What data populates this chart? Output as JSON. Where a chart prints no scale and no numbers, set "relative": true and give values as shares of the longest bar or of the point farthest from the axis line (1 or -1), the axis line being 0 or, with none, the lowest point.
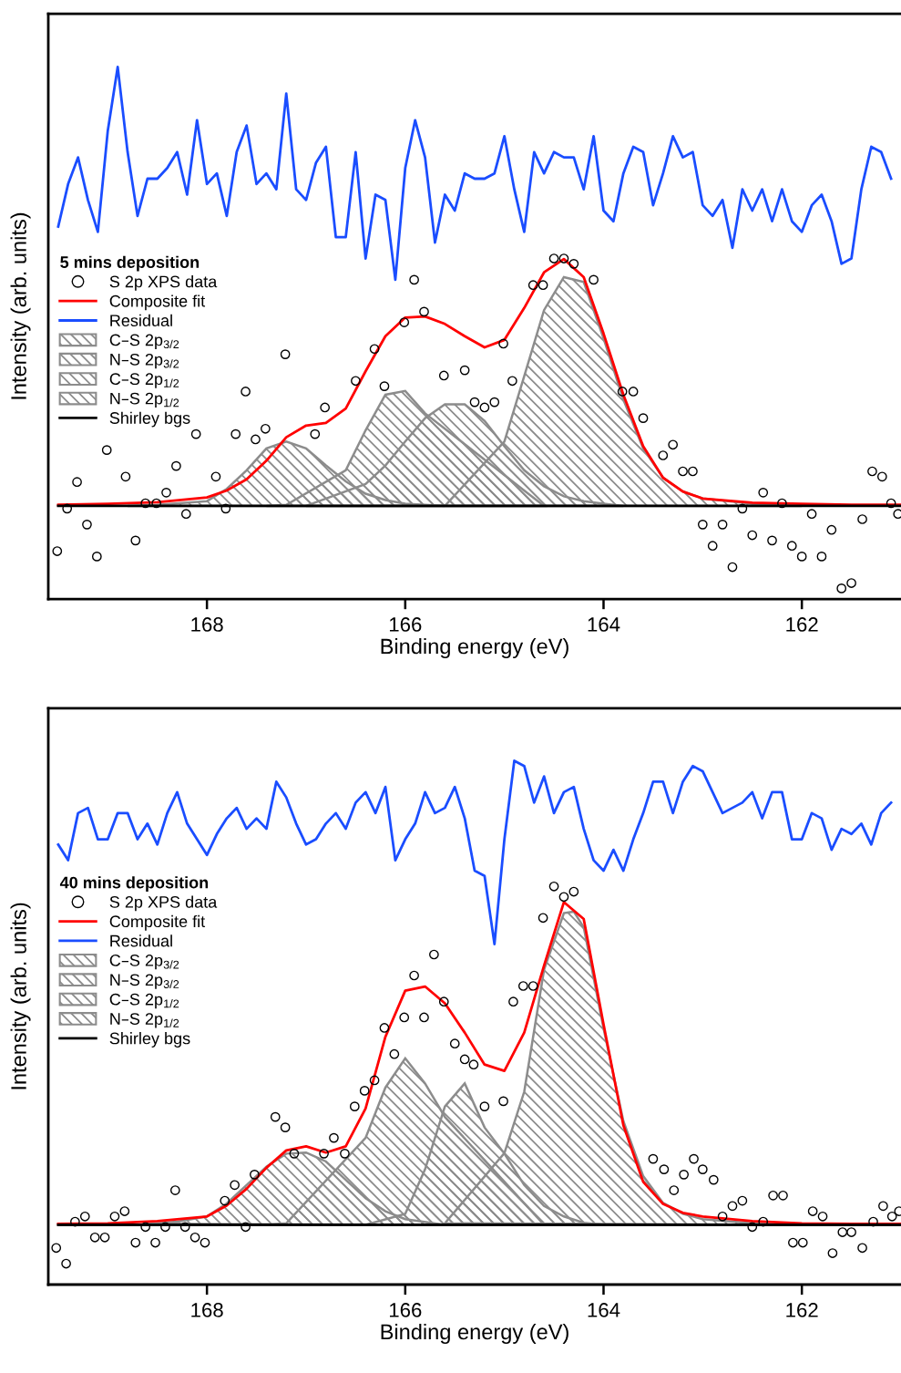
{
  "chart_data": [
    {
      "type": "line",
      "relative": true,
      "xlabel": "Binding energy (eV)",
      "ylabel": "Intensity (arb. units)",
      "legend_title": "5 mins deposition",
      "legend": "left",
      "tick_labels": "x",
      "grid": false,
      "xlim": [
        169.6,
        161.0
      ],
      "xticks": [
        168,
        166,
        164,
        162
      ],
      "series": [
        {
          "type": "scatter",
          "name": "S 2p XPS data",
          "color": "#000000",
          "marker": "circle",
          "x": [
            169.51,
            169.41,
            169.31,
            169.21,
            169.11,
            169.01,
            168.82,
            168.72,
            168.62,
            168.51,
            168.41,
            168.31,
            168.21,
            168.11,
            167.91,
            167.81,
            167.71,
            167.61,
            167.51,
            167.41,
            167.21,
            166.91,
            166.81,
            166.5,
            166.31,
            166.21,
            166.01,
            165.91,
            165.81,
            165.61,
            165.4,
            165.3,
            165.2,
            165.1,
            165.01,
            164.92,
            164.71,
            164.61,
            164.5,
            164.4,
            164.3,
            164.1,
            163.81,
            163.7,
            163.6,
            163.4,
            163.3,
            163.2,
            163.1,
            163.0,
            162.9,
            162.8,
            162.7,
            162.6,
            162.5,
            162.39,
            162.3,
            162.2,
            162.1,
            162.0,
            161.9,
            161.8,
            161.7,
            161.6,
            161.5,
            161.39,
            161.29,
            161.19,
            161.1,
            161.03
          ],
          "values": [
            0.09,
            0.17,
            0.22,
            0.14,
            0.08,
            0.28,
            0.23,
            0.11,
            0.18,
            0.18,
            0.2,
            0.25,
            0.16,
            0.31,
            0.23,
            0.17,
            0.31,
            0.39,
            0.3,
            0.32,
            0.46,
            0.31,
            0.36,
            0.41,
            0.47,
            0.4,
            0.52,
            0.6,
            0.54,
            0.42,
            0.43,
            0.37,
            0.36,
            0.37,
            0.48,
            0.41,
            0.59,
            0.59,
            0.64,
            0.64,
            0.63,
            0.6,
            0.39,
            0.39,
            0.34,
            0.27,
            0.29,
            0.24,
            0.24,
            0.14,
            0.1,
            0.14,
            0.06,
            0.17,
            0.12,
            0.2,
            0.11,
            0.18,
            0.1,
            0.08,
            0.16,
            0.08,
            0.13,
            0.02,
            0.03,
            0.15,
            0.24,
            0.23,
            0.18,
            0.16
          ]
        },
        {
          "name": "Composite fit",
          "color": "#ff0000",
          "x": [
            169.5,
            169,
            168.5,
            168,
            167.8,
            167.6,
            167.4,
            167.2,
            167,
            166.8,
            166.6,
            166.4,
            166.2,
            166,
            165.8,
            165.6,
            165.4,
            165.2,
            165,
            164.8,
            164.6,
            164.4,
            164.2,
            164,
            163.8,
            163.6,
            163.4,
            163.2,
            163,
            162.5,
            162,
            161.5,
            161
          ],
          "values": [
            0.177,
            0.179,
            0.182,
            0.191,
            0.204,
            0.225,
            0.26,
            0.304,
            0.326,
            0.331,
            0.358,
            0.428,
            0.494,
            0.529,
            0.531,
            0.517,
            0.494,
            0.473,
            0.487,
            0.547,
            0.614,
            0.639,
            0.605,
            0.499,
            0.384,
            0.287,
            0.228,
            0.202,
            0.189,
            0.181,
            0.179,
            0.177,
            0.177
          ]
        },
        {
          "name": "Residual",
          "color": "#1a4dff",
          "x": [
            169.5,
            169.4,
            169.3,
            169.2,
            169.1,
            169.0,
            168.9,
            168.8,
            168.7,
            168.6,
            168.5,
            168.4,
            168.3,
            168.2,
            168.1,
            168.0,
            167.9,
            167.8,
            167.7,
            167.6,
            167.5,
            167.4,
            167.3,
            167.2,
            167.1,
            167.0,
            166.9,
            166.8,
            166.7,
            166.6,
            166.5,
            166.4,
            166.3,
            166.2,
            166.1,
            166.0,
            165.9,
            165.8,
            165.7,
            165.6,
            165.5,
            165.4,
            165.3,
            165.2,
            165.1,
            165.0,
            164.9,
            164.8,
            164.7,
            164.6,
            164.5,
            164.4,
            164.3,
            164.2,
            164.1,
            164.0,
            163.9,
            163.8,
            163.7,
            163.6,
            163.5,
            163.4,
            163.3,
            163.2,
            163.1,
            163.0,
            162.9,
            162.8,
            162.7,
            162.6,
            162.5,
            162.4,
            162.3,
            162.2,
            162.1,
            162.0,
            161.9,
            161.8,
            161.7,
            161.6,
            161.5,
            161.4,
            161.3,
            161.2,
            161.1
          ],
          "values": [
            0.7,
            0.78,
            0.83,
            0.75,
            0.69,
            0.88,
            1.0,
            0.84,
            0.72,
            0.79,
            0.79,
            0.81,
            0.84,
            0.76,
            0.9,
            0.78,
            0.8,
            0.72,
            0.84,
            0.89,
            0.78,
            0.8,
            0.77,
            0.95,
            0.77,
            0.75,
            0.82,
            0.85,
            0.68,
            0.68,
            0.84,
            0.64,
            0.76,
            0.75,
            0.6,
            0.81,
            0.9,
            0.83,
            0.67,
            0.76,
            0.73,
            0.8,
            0.79,
            0.79,
            0.8,
            0.87,
            0.77,
            0.69,
            0.84,
            0.8,
            0.84,
            0.83,
            0.83,
            0.77,
            0.87,
            0.73,
            0.71,
            0.8,
            0.85,
            0.84,
            0.74,
            0.8,
            0.87,
            0.83,
            0.84,
            0.74,
            0.72,
            0.75,
            0.66,
            0.77,
            0.73,
            0.77,
            0.71,
            0.77,
            0.71,
            0.69,
            0.74,
            0.76,
            0.71,
            0.63,
            0.64,
            0.77,
            0.85,
            0.84,
            0.79
          ]
        },
        {
          "type": "area",
          "name": "C–S 2p$_{3/2}$",
          "color": "#8c8c8c",
          "x": [
            165.6,
            165,
            164.8,
            164.6,
            164.4,
            164.2,
            164,
            163.8,
            163.6,
            163.4,
            163.2,
            163,
            162.5,
            162
          ],
          "values": [
            0.175,
            0.296,
            0.419,
            0.543,
            0.605,
            0.596,
            0.49,
            0.375,
            0.283,
            0.228,
            0.202,
            0.189,
            0.179,
            0.175
          ]
        },
        {
          "type": "area",
          "name": "N–S 2p$_{3/2}$",
          "color": "#8c8c8c",
          "x": [
            167.4,
            167.2,
            166.6,
            166.4,
            166.2,
            166,
            165.8,
            164.6
          ],
          "values": [
            0.175,
            0.177,
            0.242,
            0.317,
            0.384,
            0.391,
            0.349,
            0.175
          ]
        },
        {
          "type": "area",
          "name": "C–S 2p$_{1/2}$",
          "color": "#8c8c8c",
          "x": [
            167,
            166.4,
            166.2,
            166,
            165.8,
            165.6,
            165.4,
            165.2,
            165,
            164.8,
            164.6,
            164.4,
            164.2,
            164,
            163.8
          ],
          "values": [
            0.175,
            0.216,
            0.251,
            0.296,
            0.34,
            0.366,
            0.366,
            0.335,
            0.287,
            0.242,
            0.212,
            0.193,
            0.184,
            0.179,
            0.175
          ]
        },
        {
          "type": "area",
          "name": "N–S 2p$_{1/2}$",
          "color": "#8c8c8c",
          "x": [
            168.8,
            168.5,
            168,
            167.8,
            167.6,
            167.4,
            167.2,
            167,
            166.8,
            166.6,
            166.4,
            166.2,
            166,
            165.6
          ],
          "values": [
            0.175,
            0.177,
            0.184,
            0.207,
            0.242,
            0.283,
            0.296,
            0.283,
            0.251,
            0.221,
            0.198,
            0.186,
            0.179,
            0.175
          ]
        },
        {
          "name": "Shirley bgs",
          "color": "#000000",
          "x": [
            169.5,
            161.0
          ],
          "values": [
            0.175,
            0.175
          ]
        }
      ]
    },
    {
      "type": "line",
      "relative": true,
      "xlabel": "Binding energy (eV)",
      "ylabel": "Intensity (arb. units)",
      "legend_title": "40 mins deposition",
      "legend": "left",
      "tick_labels": "x",
      "grid": false,
      "xlim": [
        169.6,
        161.0
      ],
      "xticks": [
        168,
        166,
        164,
        162
      ],
      "series": [
        {
          "type": "scatter",
          "name": "S 2p XPS data",
          "color": "#000000",
          "marker": "circle",
          "x": [
            169.52,
            169.42,
            169.33,
            169.23,
            169.13,
            169.03,
            168.93,
            168.83,
            168.72,
            168.62,
            168.52,
            168.42,
            168.32,
            168.22,
            168.12,
            168.02,
            167.82,
            167.72,
            167.61,
            167.52,
            167.31,
            167.21,
            167.12,
            166.82,
            166.72,
            166.61,
            166.51,
            166.41,
            166.31,
            166.21,
            166.11,
            166.01,
            165.91,
            165.81,
            165.71,
            165.61,
            165.5,
            165.4,
            165.31,
            165.2,
            165.01,
            164.91,
            164.81,
            164.71,
            164.61,
            164.5,
            164.4,
            164.3,
            163.5,
            163.39,
            163.29,
            163.19,
            163.09,
            163.0,
            162.89,
            162.8,
            162.7,
            162.6,
            162.5,
            162.39,
            162.29,
            162.19,
            162.09,
            161.99,
            161.89,
            161.79,
            161.69,
            161.59,
            161.5,
            161.39,
            161.28,
            161.18,
            161.09,
            161.02
          ],
          "values": [
            0.07,
            0.04,
            0.12,
            0.13,
            0.09,
            0.09,
            0.13,
            0.14,
            0.08,
            0.11,
            0.08,
            0.11,
            0.18,
            0.11,
            0.09,
            0.08,
            0.16,
            0.19,
            0.11,
            0.21,
            0.32,
            0.3,
            0.25,
            0.25,
            0.28,
            0.25,
            0.34,
            0.37,
            0.39,
            0.49,
            0.44,
            0.51,
            0.59,
            0.51,
            0.63,
            0.54,
            0.46,
            0.43,
            0.42,
            0.34,
            0.35,
            0.54,
            0.57,
            0.57,
            0.7,
            0.76,
            0.74,
            0.75,
            0.24,
            0.22,
            0.18,
            0.21,
            0.24,
            0.22,
            0.2,
            0.13,
            0.15,
            0.16,
            0.11,
            0.12,
            0.17,
            0.17,
            0.08,
            0.08,
            0.14,
            0.13,
            0.06,
            0.1,
            0.1,
            0.07,
            0.12,
            0.15,
            0.13,
            0.14
          ]
        },
        {
          "name": "Composite fit",
          "color": "#ff0000",
          "x": [
            169.5,
            169,
            168.5,
            168,
            167.8,
            167.6,
            167.4,
            167.2,
            167,
            166.8,
            166.6,
            166.4,
            166.2,
            166,
            165.8,
            165.6,
            165.4,
            165.2,
            165,
            164.8,
            164.6,
            164.4,
            164.2,
            164,
            163.8,
            163.6,
            163.4,
            163.2,
            163,
            162.5,
            162,
            161.5,
            161
          ],
          "values": [
            0.116,
            0.117,
            0.121,
            0.13,
            0.151,
            0.183,
            0.223,
            0.256,
            0.264,
            0.252,
            0.264,
            0.336,
            0.473,
            0.561,
            0.569,
            0.537,
            0.481,
            0.42,
            0.408,
            0.481,
            0.609,
            0.73,
            0.698,
            0.497,
            0.304,
            0.196,
            0.154,
            0.137,
            0.13,
            0.121,
            0.117,
            0.116,
            0.116
          ]
        },
        {
          "name": "Residual",
          "color": "#1a4dff",
          "x": [
            169.5,
            169.4,
            169.3,
            169.2,
            169.1,
            169.0,
            168.9,
            168.8,
            168.7,
            168.6,
            168.5,
            168.4,
            168.3,
            168.2,
            168.1,
            168.0,
            167.9,
            167.8,
            167.7,
            167.6,
            167.5,
            167.4,
            167.3,
            167.2,
            167.1,
            167.0,
            166.9,
            166.8,
            166.7,
            166.6,
            166.5,
            166.4,
            166.3,
            166.2,
            166.1,
            166.0,
            165.9,
            165.8,
            165.7,
            165.6,
            165.5,
            165.4,
            165.3,
            165.2,
            165.1,
            165.0,
            164.9,
            164.8,
            164.7,
            164.6,
            164.5,
            164.4,
            164.3,
            164.2,
            164.1,
            164.0,
            163.9,
            163.8,
            163.7,
            163.6,
            163.5,
            163.4,
            163.3,
            163.2,
            163.1,
            163.0,
            162.9,
            162.8,
            162.7,
            162.6,
            162.5,
            162.4,
            162.3,
            162.2,
            162.1,
            162.0,
            161.9,
            161.8,
            161.7,
            161.6,
            161.5,
            161.4,
            161.3,
            161.2,
            161.1
          ],
          "values": [
            0.84,
            0.81,
            0.9,
            0.91,
            0.85,
            0.85,
            0.9,
            0.9,
            0.85,
            0.88,
            0.84,
            0.9,
            0.94,
            0.88,
            0.85,
            0.82,
            0.86,
            0.89,
            0.91,
            0.87,
            0.89,
            0.87,
            0.96,
            0.93,
            0.88,
            0.84,
            0.85,
            0.88,
            0.9,
            0.87,
            0.92,
            0.94,
            0.9,
            0.95,
            0.81,
            0.85,
            0.88,
            0.94,
            0.9,
            0.91,
            0.95,
            0.89,
            0.79,
            0.78,
            0.65,
            0.85,
            1.0,
            0.99,
            0.92,
            0.97,
            0.9,
            0.94,
            0.95,
            0.87,
            0.81,
            0.79,
            0.83,
            0.79,
            0.85,
            0.9,
            0.96,
            0.96,
            0.9,
            0.96,
            0.99,
            0.98,
            0.94,
            0.9,
            0.91,
            0.92,
            0.94,
            0.89,
            0.94,
            0.94,
            0.85,
            0.85,
            0.9,
            0.89,
            0.83,
            0.87,
            0.86,
            0.88,
            0.84,
            0.9,
            0.92
          ]
        },
        {
          "type": "area",
          "name": "C–S 2p$_{3/2}$",
          "color": "#8c8c8c",
          "x": [
            165.6,
            165,
            164.8,
            164.6,
            164.4,
            164.3,
            164.2,
            164,
            163.8,
            163.6,
            163.4,
            163.2,
            163,
            162.5,
            162
          ],
          "values": [
            0.117,
            0.251,
            0.368,
            0.601,
            0.709,
            0.712,
            0.682,
            0.489,
            0.312,
            0.207,
            0.156,
            0.135,
            0.125,
            0.117,
            0.114
          ]
        },
        {
          "type": "area",
          "name": "N–S 2p$_{3/2}$",
          "color": "#8c8c8c",
          "x": [
            167.4,
            167.2,
            166.4,
            166.2,
            166,
            165.8,
            165.6,
            164.6
          ],
          "values": [
            0.114,
            0.117,
            0.28,
            0.376,
            0.432,
            0.384,
            0.32,
            0.114
          ]
        },
        {
          "type": "area",
          "name": "C–S 2p$_{1/2}$",
          "color": "#8c8c8c",
          "x": [
            166.4,
            166,
            165.8,
            165.6,
            165.4,
            165.2,
            165,
            164.8,
            164.6,
            164.4,
            164.2,
            164
          ],
          "values": [
            0.114,
            0.135,
            0.22,
            0.34,
            0.384,
            0.3,
            0.25,
            0.19,
            0.15,
            0.13,
            0.118,
            0.114
          ]
        },
        {
          "type": "area",
          "name": "N–S 2p$_{1/2}$",
          "color": "#8c8c8c",
          "x": [
            168.6,
            168.3,
            168,
            167.8,
            167.6,
            167.4,
            167.2,
            167,
            166.8,
            166.6,
            166.4,
            166.2,
            166,
            165.6
          ],
          "values": [
            0.116,
            0.12,
            0.13,
            0.155,
            0.19,
            0.225,
            0.25,
            0.252,
            0.235,
            0.2,
            0.165,
            0.14,
            0.125,
            0.114
          ]
        },
        {
          "name": "Shirley bgs",
          "color": "#000000",
          "x": [
            169.5,
            161.0
          ],
          "values": [
            0.114,
            0.114
          ]
        }
      ]
    }
  ]
}
